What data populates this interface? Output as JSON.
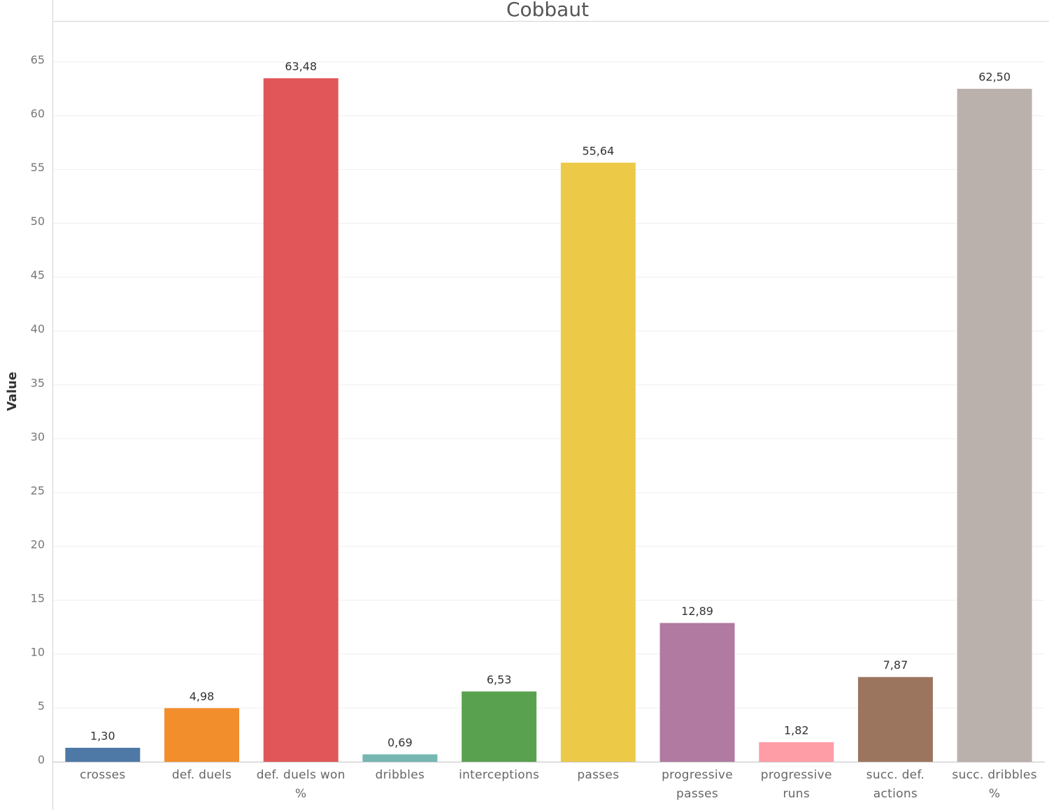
{
  "chart_data": {
    "type": "bar",
    "title": "Cobbaut",
    "y_label": "Value",
    "categories": [
      "crosses",
      "def. duels",
      "def. duels won %",
      "dribbles",
      "interceptions",
      "passes",
      "progressive passes",
      "progressive runs",
      "succ. def. actions",
      "succ. dribbles %"
    ],
    "values": [
      1.3,
      4.98,
      63.48,
      0.69,
      6.53,
      55.64,
      12.89,
      1.82,
      7.87,
      62.5
    ],
    "value_labels": [
      "1,30",
      "4,98",
      "63,48",
      "0,69",
      "6,53",
      "55,64",
      "12,89",
      "1,82",
      "7,87",
      "62,50"
    ],
    "colors": [
      "#4e79a7",
      "#f28e2b",
      "#e15759",
      "#76b7b2",
      "#59a14f",
      "#edc948",
      "#b07aa1",
      "#ff9da7",
      "#9c755f",
      "#bab0ac"
    ],
    "ylim": [
      0,
      68.8
    ],
    "yticks": [
      0,
      5,
      10,
      15,
      20,
      25,
      30,
      35,
      40,
      45,
      50,
      55,
      60,
      65
    ],
    "grid": true
  }
}
